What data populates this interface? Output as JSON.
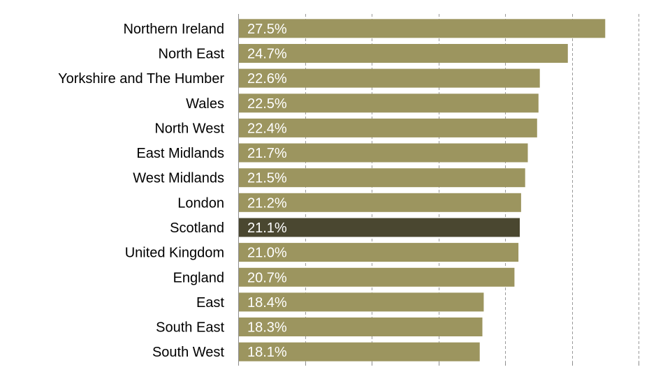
{
  "chart_data": {
    "type": "bar",
    "orientation": "horizontal",
    "title": "",
    "xlabel": "",
    "ylabel": "",
    "xlim": [
      0,
      30
    ],
    "grid": "vertical-dashed",
    "highlight_color": "#4a4730",
    "bar_color": "#9c955f",
    "categories": [
      "Northern Ireland",
      "North East",
      "Yorkshire and The Humber",
      "Wales",
      "North West",
      "East Midlands",
      "West Midlands",
      "London",
      "Scotland",
      "United Kingdom",
      "England",
      "East",
      "South East",
      "South West"
    ],
    "values": [
      27.5,
      24.7,
      22.6,
      22.5,
      22.4,
      21.7,
      21.5,
      21.2,
      21.1,
      21.0,
      20.7,
      18.4,
      18.3,
      18.1
    ],
    "value_labels": [
      "27.5%",
      "24.7%",
      "22.6%",
      "22.5%",
      "22.4%",
      "21.7%",
      "21.5%",
      "21.2%",
      "21.1%",
      "21.0%",
      "20.7%",
      "18.4%",
      "18.3%",
      "18.1%"
    ],
    "highlighted_category": "Scotland"
  }
}
